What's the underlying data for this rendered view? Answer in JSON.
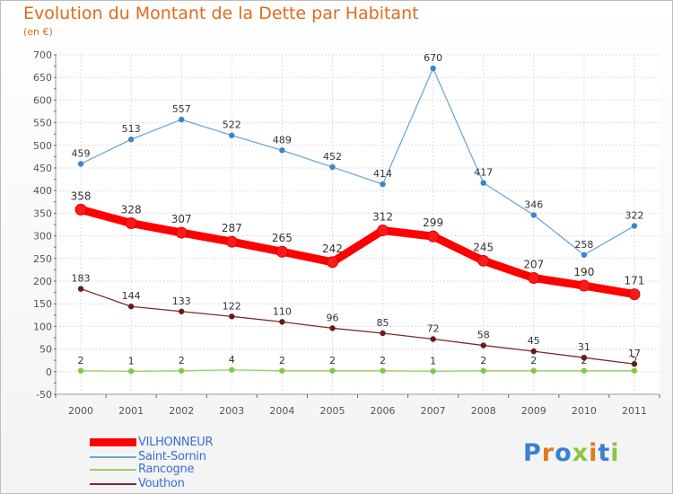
{
  "title": "Evolution du Montant de la Dette par Habitant",
  "unit_label": "(en €)",
  "brand": {
    "letters": [
      {
        "ch": "P",
        "color": "#3a7fd0"
      },
      {
        "ch": "r",
        "color": "#e07a1a"
      },
      {
        "ch": "o",
        "color": "#3a7fd0"
      },
      {
        "ch": "x",
        "color": "#8cc63f"
      },
      {
        "ch": "i",
        "color": "#e07a1a"
      },
      {
        "ch": "t",
        "color": "#3a7fd0"
      },
      {
        "ch": "i",
        "color": "#8cc63f"
      }
    ]
  },
  "chart_data": {
    "type": "line",
    "x": [
      "2000",
      "2001",
      "2002",
      "2003",
      "2004",
      "2005",
      "2006",
      "2007",
      "2008",
      "2009",
      "2010",
      "2011"
    ],
    "ylim": [
      -50,
      700
    ],
    "yticks": [
      -50,
      0,
      50,
      100,
      150,
      200,
      250,
      300,
      350,
      400,
      450,
      500,
      550,
      600,
      650,
      700
    ],
    "grid": true,
    "legend_position": "bottom-left",
    "series": [
      {
        "name": "VILHONNEUR",
        "color": "#ff0000",
        "values": [
          358,
          328,
          307,
          287,
          265,
          242,
          312,
          299,
          245,
          207,
          190,
          171
        ]
      },
      {
        "name": "Saint-Sornin",
        "color": "#6ea8d8",
        "values": [
          459,
          513,
          557,
          522,
          489,
          452,
          414,
          670,
          417,
          346,
          258,
          322
        ]
      },
      {
        "name": "Rancogne",
        "color": "#9acd6a",
        "values": [
          2,
          1,
          2,
          4,
          2,
          2,
          2,
          1,
          2,
          2,
          2,
          2
        ]
      },
      {
        "name": "Vouthon",
        "color": "#7a2c2c",
        "values": [
          183,
          144,
          133,
          122,
          110,
          96,
          85,
          72,
          58,
          45,
          31,
          17
        ]
      }
    ]
  }
}
